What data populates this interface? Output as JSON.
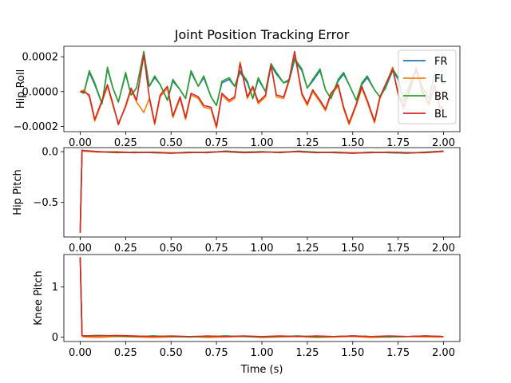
{
  "chart_data": [
    {
      "type": "line",
      "title": "Joint Position Tracking Error",
      "ylabel": "Hip Roll",
      "xlabel": "",
      "xlim": [
        -0.09,
        2.09
      ],
      "ylim": [
        -0.00023,
        0.00026
      ],
      "xticks": [
        "0.00",
        "0.25",
        "0.50",
        "0.75",
        "1.00",
        "1.25",
        "1.50",
        "1.75",
        "2.00"
      ],
      "xtick_values": [
        0,
        0.25,
        0.5,
        0.75,
        1.0,
        1.25,
        1.5,
        1.75,
        2.0
      ],
      "yticks": [
        "−0.0002",
        "0.0000",
        "0.0002"
      ],
      "ytick_values": [
        -0.0002,
        0,
        0.0002
      ],
      "legend": {
        "placement": "top-right",
        "entries": [
          "FR",
          "FL",
          "BR",
          "BL"
        ]
      },
      "series": [
        {
          "name": "FR",
          "color": "#1f77b4",
          "x": [
            0.0,
            0.02,
            0.05,
            0.08,
            0.12,
            0.15,
            0.18,
            0.21,
            0.25,
            0.28,
            0.31,
            0.35,
            0.38,
            0.41,
            0.44,
            0.48,
            0.51,
            0.55,
            0.58,
            0.61,
            0.65,
            0.68,
            0.72,
            0.75,
            0.78,
            0.82,
            0.85,
            0.88,
            0.92,
            0.95,
            0.98,
            1.02,
            1.05,
            1.08,
            1.12,
            1.15,
            1.18,
            1.22,
            1.25,
            1.28,
            1.32,
            1.35,
            1.38,
            1.42,
            1.45,
            1.48,
            1.52,
            1.55,
            1.58,
            1.62,
            1.65,
            1.68,
            1.72,
            1.75,
            1.78,
            1.82,
            1.85,
            1.88,
            1.92,
            1.95,
            1.98,
            2.0
          ],
          "values": [
            0.0,
            -1e-05,
            0.00011,
            4e-05,
            -7e-05,
            0.00013,
            2e-05,
            -6e-05,
            0.0001,
            -2e-05,
            2e-05,
            0.00022,
            3e-05,
            8e-05,
            4e-05,
            -5e-05,
            6e-05,
            1e-05,
            -4e-05,
            0.00011,
            3e-05,
            8e-05,
            -3e-05,
            -8e-05,
            5e-05,
            7e-05,
            3e-05,
            0.00011,
            5e-05,
            -4e-05,
            7e-05,
            0.0,
            0.00015,
            0.0001,
            5e-05,
            6e-05,
            0.00018,
            0.00012,
            2e-05,
            6e-05,
            0.00012,
            1e-05,
            -4e-05,
            6e-05,
            0.0001,
            4e-05,
            -5e-05,
            4e-05,
            8e-05,
            1e-05,
            -3e-05,
            2e-05,
            0.00012,
            7e-05,
            -6e-05,
            5e-05,
            0.00012,
            3e-05,
            -4e-05,
            9e-05,
            8e-05,
            4e-05
          ]
        },
        {
          "name": "FL",
          "color": "#ff7f0e",
          "x": [
            0.0,
            0.02,
            0.05,
            0.08,
            0.12,
            0.15,
            0.18,
            0.21,
            0.25,
            0.28,
            0.31,
            0.35,
            0.38,
            0.41,
            0.44,
            0.48,
            0.51,
            0.55,
            0.58,
            0.61,
            0.65,
            0.68,
            0.72,
            0.75,
            0.78,
            0.82,
            0.85,
            0.88,
            0.92,
            0.95,
            0.98,
            1.02,
            1.05,
            1.08,
            1.12,
            1.15,
            1.18,
            1.22,
            1.25,
            1.28,
            1.32,
            1.35,
            1.38,
            1.42,
            1.45,
            1.48,
            1.52,
            1.55,
            1.58,
            1.62,
            1.65,
            1.68,
            1.72,
            1.75,
            1.78,
            1.82,
            1.85,
            1.88,
            1.92,
            1.95,
            1.98,
            2.0
          ],
          "values": [
            0.0,
            1e-05,
            -3e-05,
            -0.00017,
            -6e-05,
            3e-05,
            -8e-05,
            -0.00018,
            -9e-05,
            1e-05,
            -6e-05,
            -0.00012,
            -4e-05,
            -0.00019,
            -3e-05,
            2e-05,
            -0.00015,
            -4e-05,
            -0.00016,
            -2e-05,
            -4e-05,
            -9e-05,
            -0.0001,
            -0.00021,
            -2e-05,
            -6e-05,
            -4e-05,
            0.00017,
            -4e-05,
            2e-05,
            -7e-05,
            -3e-05,
            0.00016,
            -3e-05,
            -4e-05,
            6e-05,
            0.00022,
            -2e-05,
            -8e-05,
            0.0,
            -6e-05,
            -0.00011,
            -2e-05,
            3e-05,
            -0.0001,
            -0.00019,
            -8e-05,
            2e-05,
            -6e-05,
            -0.00018,
            -4e-05,
            3e-05,
            0.00014,
            -2e-05,
            -0.0001,
            2e-05,
            0.00014,
            0.0,
            -8e-05,
            3e-05,
            -0.0001,
            -0.0001
          ]
        },
        {
          "name": "BR",
          "color": "#2ca02c",
          "x": [
            0.0,
            0.02,
            0.05,
            0.08,
            0.12,
            0.15,
            0.18,
            0.21,
            0.25,
            0.28,
            0.31,
            0.35,
            0.38,
            0.41,
            0.44,
            0.48,
            0.51,
            0.55,
            0.58,
            0.61,
            0.65,
            0.68,
            0.72,
            0.75,
            0.78,
            0.82,
            0.85,
            0.88,
            0.92,
            0.95,
            0.98,
            1.02,
            1.05,
            1.08,
            1.12,
            1.15,
            1.18,
            1.22,
            1.25,
            1.28,
            1.32,
            1.35,
            1.38,
            1.42,
            1.45,
            1.48,
            1.52,
            1.55,
            1.58,
            1.62,
            1.65,
            1.68,
            1.72,
            1.75,
            1.78,
            1.82,
            1.85,
            1.88,
            1.92,
            1.95,
            1.98,
            2.0
          ],
          "values": [
            0.0,
            -1e-05,
            0.00012,
            5e-05,
            -7e-05,
            0.00014,
            2e-05,
            -6e-05,
            0.00011,
            -2e-05,
            2e-05,
            0.00023,
            3e-05,
            9e-05,
            4e-05,
            -5e-05,
            7e-05,
            1e-05,
            -4e-05,
            0.00012,
            3e-05,
            9e-05,
            -3e-05,
            -8e-05,
            6e-05,
            8e-05,
            3e-05,
            0.00012,
            6e-05,
            -4e-05,
            8e-05,
            0.0,
            0.00016,
            0.00011,
            5e-05,
            7e-05,
            0.00019,
            0.00013,
            2e-05,
            7e-05,
            0.00013,
            1e-05,
            -4e-05,
            7e-05,
            0.00011,
            4e-05,
            -5e-05,
            5e-05,
            9e-05,
            1e-05,
            -3e-05,
            2e-05,
            0.00013,
            8e-05,
            -6e-05,
            6e-05,
            0.00013,
            3e-05,
            -4e-05,
            0.0001,
            9e-05,
            4e-05
          ]
        },
        {
          "name": "BL",
          "color": "#d62728",
          "x": [
            0.0,
            0.02,
            0.05,
            0.08,
            0.12,
            0.15,
            0.18,
            0.21,
            0.25,
            0.28,
            0.31,
            0.35,
            0.38,
            0.41,
            0.44,
            0.48,
            0.51,
            0.55,
            0.58,
            0.61,
            0.65,
            0.68,
            0.72,
            0.75,
            0.78,
            0.82,
            0.85,
            0.88,
            0.92,
            0.95,
            0.98,
            1.02,
            1.05,
            1.08,
            1.12,
            1.15,
            1.18,
            1.22,
            1.25,
            1.28,
            1.32,
            1.35,
            1.38,
            1.42,
            1.45,
            1.48,
            1.52,
            1.55,
            1.58,
            1.62,
            1.65,
            1.68,
            1.72,
            1.75,
            1.78,
            1.82,
            1.85,
            1.88,
            1.92,
            1.95,
            1.98,
            2.0
          ],
          "values": [
            0.0,
            0.0,
            -2e-05,
            -0.00016,
            -5e-05,
            4e-05,
            -7e-05,
            -0.00019,
            -8e-05,
            2e-05,
            -5e-05,
            0.00021,
            -3e-05,
            -0.00018,
            -2e-05,
            3e-05,
            -0.00014,
            -3e-05,
            -0.00015,
            -1e-05,
            -3e-05,
            -8e-05,
            -9e-05,
            -0.0002,
            -1e-05,
            -5e-05,
            -3e-05,
            0.00016,
            -3e-05,
            3e-05,
            -6e-05,
            -2e-05,
            0.00015,
            -2e-05,
            -3e-05,
            7e-05,
            0.00023,
            -1e-05,
            -7e-05,
            1e-05,
            -5e-05,
            -0.0001,
            -1e-05,
            4e-05,
            -9e-05,
            -0.00018,
            -7e-05,
            3e-05,
            -5e-05,
            -0.00017,
            -3e-05,
            4e-05,
            0.00013,
            -1e-05,
            -9e-05,
            3e-05,
            0.00013,
            1e-05,
            -7e-05,
            4e-05,
            -9e-05,
            -9e-05
          ]
        }
      ]
    },
    {
      "type": "line",
      "title": "",
      "ylabel": "Hip Pitch",
      "xlabel": "",
      "xlim": [
        -0.09,
        2.09
      ],
      "ylim": [
        -0.84,
        0.04
      ],
      "xticks": [
        "0.00",
        "0.25",
        "0.50",
        "0.75",
        "1.00",
        "1.25",
        "1.50",
        "1.75",
        "2.00"
      ],
      "xtick_values": [
        0,
        0.25,
        0.5,
        0.75,
        1.0,
        1.25,
        1.5,
        1.75,
        2.0
      ],
      "yticks": [
        "−0.5",
        "0.0"
      ],
      "ytick_values": [
        -0.5,
        0.0
      ],
      "series": [
        {
          "name": "FR",
          "color": "#1f77b4",
          "x": [
            0.0,
            0.01,
            0.02,
            0.1,
            0.2,
            0.3,
            0.4,
            0.5,
            0.6,
            0.7,
            0.8,
            0.9,
            1.0,
            1.1,
            1.2,
            1.3,
            1.4,
            1.5,
            1.6,
            1.7,
            1.8,
            1.9,
            2.0
          ],
          "values": [
            -0.78,
            0.01,
            0.01,
            0.0,
            -0.01,
            -0.005,
            -0.01,
            -0.015,
            -0.005,
            -0.01,
            0.005,
            -0.005,
            0.0,
            -0.01,
            0.005,
            -0.005,
            -0.01,
            -0.015,
            -0.005,
            -0.01,
            -0.015,
            -0.005,
            0.005
          ]
        },
        {
          "name": "FL",
          "color": "#ff7f0e",
          "x": [
            0.0,
            0.01,
            0.02,
            0.1,
            0.2,
            0.3,
            0.4,
            0.5,
            0.6,
            0.7,
            0.8,
            0.9,
            1.0,
            1.1,
            1.2,
            1.3,
            1.4,
            1.5,
            1.6,
            1.7,
            1.8,
            1.9,
            2.0
          ],
          "values": [
            -0.76,
            0.01,
            0.005,
            -0.005,
            0.0,
            -0.01,
            -0.005,
            -0.01,
            -0.01,
            -0.005,
            0.0,
            -0.01,
            -0.005,
            -0.005,
            0.0,
            -0.01,
            -0.005,
            -0.01,
            -0.01,
            -0.005,
            -0.01,
            -0.01,
            0.0
          ]
        },
        {
          "name": "BR",
          "color": "#2ca02c",
          "x": [
            0.0,
            0.01,
            0.02,
            0.1,
            0.2,
            0.3,
            0.4,
            0.5,
            0.6,
            0.7,
            0.8,
            0.9,
            1.0,
            1.1,
            1.2,
            1.3,
            1.4,
            1.5,
            1.6,
            1.7,
            1.8,
            1.9,
            2.0
          ],
          "values": [
            -0.78,
            0.01,
            0.01,
            0.0,
            -0.01,
            -0.005,
            -0.01,
            -0.015,
            -0.005,
            -0.01,
            0.005,
            -0.005,
            0.0,
            -0.01,
            0.005,
            -0.005,
            -0.01,
            -0.015,
            -0.005,
            -0.01,
            -0.015,
            -0.005,
            0.005
          ]
        },
        {
          "name": "BL",
          "color": "#d62728",
          "x": [
            0.0,
            0.01,
            0.02,
            0.1,
            0.2,
            0.3,
            0.4,
            0.5,
            0.6,
            0.7,
            0.8,
            0.9,
            1.0,
            1.1,
            1.2,
            1.3,
            1.4,
            1.5,
            1.6,
            1.7,
            1.8,
            1.9,
            2.0
          ],
          "values": [
            -0.8,
            0.015,
            0.01,
            0.0,
            -0.005,
            -0.01,
            -0.005,
            -0.015,
            -0.01,
            -0.005,
            0.0,
            -0.01,
            -0.005,
            -0.005,
            0.0,
            -0.01,
            -0.005,
            -0.015,
            -0.01,
            -0.005,
            -0.01,
            -0.01,
            0.005
          ]
        }
      ]
    },
    {
      "type": "line",
      "title": "",
      "ylabel": "Knee Pitch",
      "xlabel": "Time (s)",
      "xlim": [
        -0.09,
        2.09
      ],
      "ylim": [
        -0.09,
        1.65
      ],
      "xticks": [
        "0.00",
        "0.25",
        "0.50",
        "0.75",
        "1.00",
        "1.25",
        "1.50",
        "1.75",
        "2.00"
      ],
      "xtick_values": [
        0,
        0.25,
        0.5,
        0.75,
        1.0,
        1.25,
        1.5,
        1.75,
        2.0
      ],
      "yticks": [
        "0",
        "1"
      ],
      "ytick_values": [
        0,
        1
      ],
      "series": [
        {
          "name": "FR",
          "color": "#1f77b4",
          "x": [
            0.0,
            0.01,
            0.02,
            0.1,
            0.2,
            0.3,
            0.4,
            0.5,
            0.6,
            0.7,
            0.8,
            0.9,
            1.0,
            1.1,
            1.2,
            1.3,
            1.4,
            1.5,
            1.6,
            1.7,
            1.8,
            1.9,
            2.0
          ],
          "values": [
            1.58,
            0.03,
            0.02,
            0.03,
            0.02,
            0.01,
            0.02,
            0.01,
            0.0,
            0.01,
            0.02,
            0.01,
            0.0,
            0.01,
            0.02,
            0.0,
            0.01,
            0.02,
            0.01,
            0.0,
            0.01,
            0.02,
            0.01
          ]
        },
        {
          "name": "FL",
          "color": "#ff7f0e",
          "x": [
            0.0,
            0.01,
            0.02,
            0.1,
            0.2,
            0.3,
            0.4,
            0.5,
            0.6,
            0.7,
            0.8,
            0.9,
            1.0,
            1.1,
            1.2,
            1.3,
            1.4,
            1.5,
            1.6,
            1.7,
            1.8,
            1.9,
            2.0
          ],
          "values": [
            1.55,
            0.02,
            0.0,
            -0.01,
            0.01,
            0.0,
            -0.01,
            0.0,
            0.01,
            -0.01,
            0.0,
            0.01,
            -0.01,
            0.0,
            0.01,
            -0.01,
            0.0,
            0.01,
            -0.01,
            0.0,
            0.01,
            0.0,
            0.0
          ]
        },
        {
          "name": "BR",
          "color": "#2ca02c",
          "x": [
            0.0,
            0.01,
            0.02,
            0.1,
            0.2,
            0.3,
            0.4,
            0.5,
            0.6,
            0.7,
            0.8,
            0.9,
            1.0,
            1.1,
            1.2,
            1.3,
            1.4,
            1.5,
            1.6,
            1.7,
            1.8,
            1.9,
            2.0
          ],
          "values": [
            1.58,
            0.03,
            0.02,
            0.03,
            0.02,
            0.01,
            0.02,
            0.01,
            0.0,
            0.01,
            0.02,
            0.01,
            0.0,
            0.01,
            0.02,
            0.0,
            0.01,
            0.02,
            0.01,
            0.0,
            0.01,
            0.02,
            0.01
          ]
        },
        {
          "name": "BL",
          "color": "#d62728",
          "x": [
            0.0,
            0.01,
            0.02,
            0.1,
            0.2,
            0.3,
            0.4,
            0.5,
            0.6,
            0.7,
            0.8,
            0.9,
            1.0,
            1.1,
            1.2,
            1.3,
            1.4,
            1.5,
            1.6,
            1.7,
            1.8,
            1.9,
            2.0
          ],
          "values": [
            1.6,
            0.03,
            0.02,
            0.02,
            0.03,
            0.02,
            0.01,
            0.02,
            0.01,
            0.02,
            0.01,
            0.02,
            0.01,
            0.02,
            0.01,
            0.02,
            0.01,
            0.02,
            0.01,
            0.02,
            0.01,
            0.02,
            0.01
          ]
        }
      ]
    }
  ]
}
